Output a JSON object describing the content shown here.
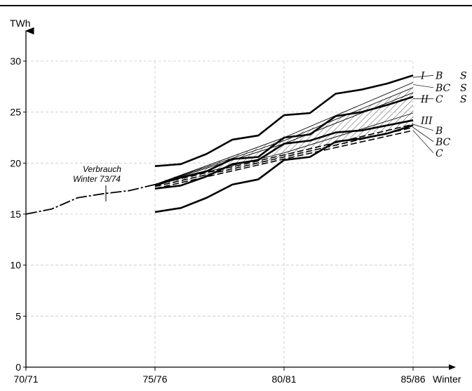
{
  "chart_data": {
    "type": "line",
    "title": "",
    "xlabel": "Winter",
    "ylabel": "TWh",
    "xlim": [
      1970,
      1985
    ],
    "ylim": [
      0,
      30
    ],
    "x_ticks": [
      {
        "value": 1970,
        "label": "70/71"
      },
      {
        "value": 1975,
        "label": "75/76"
      },
      {
        "value": 1980,
        "label": "80/81"
      },
      {
        "value": 1985,
        "label": "85/86"
      }
    ],
    "y_ticks": [
      0,
      5,
      10,
      15,
      20,
      25,
      30
    ],
    "grid": true,
    "annotation": {
      "line1": "Verbrauch",
      "line2": "Winter 73/74"
    },
    "series": [
      {
        "name": "",
        "style": "dashed-thick",
        "points": [
          [
            1970,
            15.0
          ],
          [
            1971,
            15.5
          ],
          [
            1972,
            16.6
          ],
          [
            1973,
            17.0
          ],
          [
            1974,
            17.3
          ],
          [
            1975,
            17.9
          ]
        ]
      },
      {
        "name": "",
        "style": "thick",
        "points": [
          [
            1975,
            19.7
          ],
          [
            1976,
            19.9
          ],
          [
            1977,
            20.9
          ],
          [
            1978,
            22.3
          ],
          [
            1979,
            22.7
          ],
          [
            1980,
            24.7
          ],
          [
            1981,
            24.9
          ],
          [
            1982,
            26.8
          ],
          [
            1983,
            27.2
          ],
          [
            1984,
            27.8
          ],
          [
            1985,
            28.6
          ]
        ]
      },
      {
        "name": "",
        "style": "thin",
        "points": [
          [
            1975,
            17.9
          ],
          [
            1980,
            22.5
          ],
          [
            1985,
            27.9
          ]
        ]
      },
      {
        "name": "",
        "style": "thin",
        "points": [
          [
            1975,
            17.9
          ],
          [
            1980,
            22.2
          ],
          [
            1985,
            27.4
          ]
        ]
      },
      {
        "name": "",
        "style": "thin",
        "points": [
          [
            1975,
            17.9
          ],
          [
            1980,
            21.9
          ],
          [
            1985,
            26.9
          ]
        ]
      },
      {
        "name": "",
        "style": "thick",
        "points": [
          [
            1975,
            17.8
          ],
          [
            1976,
            18.6
          ],
          [
            1977,
            19.2
          ],
          [
            1978,
            20.4
          ],
          [
            1979,
            20.6
          ],
          [
            1980,
            22.5
          ],
          [
            1981,
            22.8
          ],
          [
            1982,
            24.6
          ],
          [
            1983,
            25.0
          ],
          [
            1984,
            25.7
          ],
          [
            1985,
            26.5
          ]
        ]
      },
      {
        "name": "",
        "style": "thin",
        "points": [
          [
            1975,
            17.9
          ],
          [
            1980,
            21.0
          ],
          [
            1985,
            24.9
          ]
        ]
      },
      {
        "name": "",
        "style": "thick",
        "points": [
          [
            1975,
            17.5
          ],
          [
            1976,
            17.8
          ],
          [
            1977,
            18.7
          ],
          [
            1978,
            19.9
          ],
          [
            1979,
            20.3
          ],
          [
            1980,
            21.9
          ],
          [
            1981,
            22.2
          ],
          [
            1982,
            23.0
          ],
          [
            1983,
            23.2
          ],
          [
            1984,
            23.7
          ],
          [
            1985,
            24.2
          ]
        ]
      },
      {
        "name": "",
        "style": "dashed",
        "points": [
          [
            1975,
            17.9
          ],
          [
            1980,
            20.8
          ],
          [
            1985,
            23.8
          ]
        ]
      },
      {
        "name": "",
        "style": "dashed",
        "points": [
          [
            1975,
            17.7
          ],
          [
            1980,
            20.6
          ],
          [
            1985,
            23.5
          ]
        ]
      },
      {
        "name": "",
        "style": "dashed",
        "points": [
          [
            1975,
            17.5
          ],
          [
            1980,
            20.4
          ],
          [
            1985,
            23.2
          ]
        ]
      },
      {
        "name": "",
        "style": "thick",
        "points": [
          [
            1975,
            15.2
          ],
          [
            1976,
            15.6
          ],
          [
            1977,
            16.6
          ],
          [
            1978,
            17.9
          ],
          [
            1979,
            18.4
          ],
          [
            1980,
            20.3
          ],
          [
            1981,
            20.6
          ],
          [
            1982,
            22.1
          ],
          [
            1983,
            22.4
          ],
          [
            1984,
            22.9
          ],
          [
            1985,
            23.7
          ]
        ]
      }
    ],
    "hatched_band": {
      "upper": [
        [
          1975,
          18.0
        ],
        [
          1980,
          22.4
        ],
        [
          1985,
          27.3
        ]
      ],
      "lower": [
        [
          1975,
          17.6
        ],
        [
          1980,
          20.5
        ],
        [
          1985,
          23.4
        ]
      ]
    },
    "right_labels": [
      {
        "text": "I",
        "y": 28.6,
        "style": "roman"
      },
      {
        "text": "B",
        "y": 28.6,
        "style": "letter"
      },
      {
        "text": "S",
        "y": 28.6,
        "style": "far"
      },
      {
        "text": "BC",
        "y": 27.4,
        "style": "letter"
      },
      {
        "text": "S",
        "y": 27.4,
        "style": "far"
      },
      {
        "text": "II",
        "y": 26.3,
        "style": "roman"
      },
      {
        "text": "C",
        "y": 26.3,
        "style": "letter"
      },
      {
        "text": "S",
        "y": 26.3,
        "style": "far"
      },
      {
        "text": "III",
        "y": 24.2,
        "style": "roman"
      },
      {
        "text": "B",
        "y": 23.2,
        "style": "letter"
      },
      {
        "text": "BC",
        "y": 22.1,
        "style": "letter"
      },
      {
        "text": "C",
        "y": 21.0,
        "style": "letter"
      }
    ]
  }
}
